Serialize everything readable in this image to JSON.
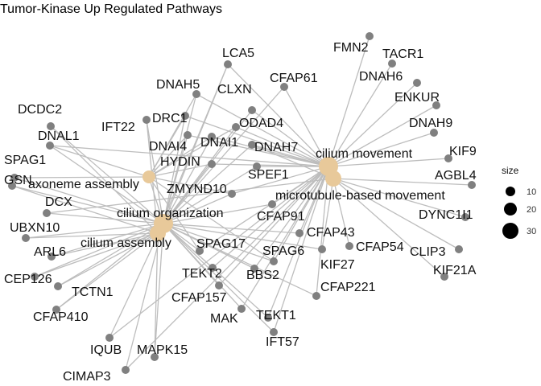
{
  "title": "Tumor-Kinase Up Regulated Pathways",
  "colors": {
    "edge": "#bdbdbd",
    "gene_node": "#808080",
    "term_node": "#e8c99a",
    "legend_dot": "#000000"
  },
  "legend": {
    "title": "size",
    "labels": [
      "10",
      "20",
      "30"
    ]
  },
  "terms": [
    {
      "id": "cm",
      "label": "cilium movement"
    },
    {
      "id": "mbm",
      "label": "microtubule-based movement"
    },
    {
      "id": "aa",
      "label": "axoneme assembly"
    },
    {
      "id": "co",
      "label": "cilium organization"
    },
    {
      "id": "ca",
      "label": "cilium assembly"
    }
  ],
  "genes": [
    {
      "id": "FMN2",
      "label": "FMN2"
    },
    {
      "id": "TACR1",
      "label": "TACR1"
    },
    {
      "id": "LCA5",
      "label": "LCA5"
    },
    {
      "id": "DNAH6",
      "label": "DNAH6"
    },
    {
      "id": "CFAP61",
      "label": "CFAP61"
    },
    {
      "id": "DNAH5",
      "label": "DNAH5"
    },
    {
      "id": "CLXN",
      "label": "CLXN"
    },
    {
      "id": "ENKUR",
      "label": "ENKUR"
    },
    {
      "id": "DCDC2",
      "label": "DCDC2"
    },
    {
      "id": "DRC1",
      "label": "DRC1"
    },
    {
      "id": "ODAD4",
      "label": "ODAD4"
    },
    {
      "id": "IFT22",
      "label": "IFT22"
    },
    {
      "id": "DNAH9",
      "label": "DNAH9"
    },
    {
      "id": "DNAL1",
      "label": "DNAL1"
    },
    {
      "id": "DNAI4",
      "label": "DNAI4"
    },
    {
      "id": "DNAI1",
      "label": "DNAI1"
    },
    {
      "id": "DNAH7",
      "label": "DNAH7"
    },
    {
      "id": "KIF9",
      "label": "KIF9"
    },
    {
      "id": "SPAG1",
      "label": "SPAG1"
    },
    {
      "id": "HYDIN",
      "label": "HYDIN"
    },
    {
      "id": "AGBL4",
      "label": "AGBL4"
    },
    {
      "id": "GSN",
      "label": "GSN"
    },
    {
      "id": "SPEF1",
      "label": "SPEF1"
    },
    {
      "id": "ZMYND10",
      "label": "ZMYND10"
    },
    {
      "id": "DCX",
      "label": "DCX"
    },
    {
      "id": "DYNC1I1",
      "label": "DYNC1I1"
    },
    {
      "id": "CFAP91",
      "label": "CFAP91"
    },
    {
      "id": "UBXN10",
      "label": "UBXN10"
    },
    {
      "id": "CFAP43",
      "label": "CFAP43"
    },
    {
      "id": "CFAP54",
      "label": "CFAP54"
    },
    {
      "id": "ARL6",
      "label": "ARL6"
    },
    {
      "id": "SPAG17",
      "label": "SPAG17"
    },
    {
      "id": "SPAG6",
      "label": "SPAG6"
    },
    {
      "id": "CLIP3",
      "label": "CLIP3"
    },
    {
      "id": "KIF27",
      "label": "KIF27"
    },
    {
      "id": "CEP126",
      "label": "CEP126"
    },
    {
      "id": "TEKT2",
      "label": "TEKT2"
    },
    {
      "id": "BBS2",
      "label": "BBS2"
    },
    {
      "id": "KIF21A",
      "label": "KIF21A"
    },
    {
      "id": "TCTN1",
      "label": "TCTN1"
    },
    {
      "id": "CFAP221",
      "label": "CFAP221"
    },
    {
      "id": "CFAP157",
      "label": "CFAP157"
    },
    {
      "id": "CFAP410",
      "label": "CFAP410"
    },
    {
      "id": "MAK",
      "label": "MAK"
    },
    {
      "id": "TEKT1",
      "label": "TEKT1"
    },
    {
      "id": "IFT57",
      "label": "IFT57"
    },
    {
      "id": "IQUB",
      "label": "IQUB"
    },
    {
      "id": "MAPK15",
      "label": "MAPK15"
    },
    {
      "id": "CIMAP3",
      "label": "CIMAP3"
    }
  ],
  "edges": [
    [
      "FMN2",
      "cm"
    ],
    [
      "TACR1",
      "cm"
    ],
    [
      "DNAH6",
      "cm"
    ],
    [
      "ENKUR",
      "cm"
    ],
    [
      "DNAH9",
      "cm"
    ],
    [
      "KIF9",
      "cm"
    ],
    [
      "AGBL4",
      "mbm"
    ],
    [
      "DYNC1I1",
      "mbm"
    ],
    [
      "CLIP3",
      "mbm"
    ],
    [
      "KIF21A",
      "mbm"
    ],
    [
      "CFAP54",
      "mbm"
    ],
    [
      "LCA5",
      "co"
    ],
    [
      "LCA5",
      "ca"
    ],
    [
      "LCA5",
      "cm"
    ],
    [
      "CFAP61",
      "cm"
    ],
    [
      "CFAP61",
      "co"
    ],
    [
      "DNAH5",
      "cm"
    ],
    [
      "DNAH5",
      "co"
    ],
    [
      "DNAH5",
      "aa"
    ],
    [
      "CLXN",
      "cm"
    ],
    [
      "CLXN",
      "co"
    ],
    [
      "DCDC2",
      "co"
    ],
    [
      "DCDC2",
      "ca"
    ],
    [
      "DRC1",
      "cm"
    ],
    [
      "DRC1",
      "co"
    ],
    [
      "DRC1",
      "aa"
    ],
    [
      "ODAD4",
      "cm"
    ],
    [
      "ODAD4",
      "co"
    ],
    [
      "ODAD4",
      "aa"
    ],
    [
      "IFT22",
      "co"
    ],
    [
      "IFT22",
      "ca"
    ],
    [
      "DNAL1",
      "cm"
    ],
    [
      "DNAL1",
      "co"
    ],
    [
      "DNAL1",
      "aa"
    ],
    [
      "DNAI4",
      "cm"
    ],
    [
      "DNAI4",
      "co"
    ],
    [
      "DNAI4",
      "aa"
    ],
    [
      "DNAI1",
      "cm"
    ],
    [
      "DNAI1",
      "co"
    ],
    [
      "DNAI1",
      "aa"
    ],
    [
      "DNAH7",
      "cm"
    ],
    [
      "DNAH7",
      "mbm"
    ],
    [
      "DNAH7",
      "co"
    ],
    [
      "SPAG1",
      "co"
    ],
    [
      "SPAG1",
      "aa"
    ],
    [
      "HYDIN",
      "cm"
    ],
    [
      "HYDIN",
      "co"
    ],
    [
      "HYDIN",
      "aa"
    ],
    [
      "GSN",
      "co"
    ],
    [
      "GSN",
      "ca"
    ],
    [
      "SPEF1",
      "cm"
    ],
    [
      "SPEF1",
      "co"
    ],
    [
      "ZMYND10",
      "cm"
    ],
    [
      "ZMYND10",
      "co"
    ],
    [
      "ZMYND10",
      "aa"
    ],
    [
      "DCX",
      "mbm"
    ],
    [
      "DCX",
      "co"
    ],
    [
      "CFAP91",
      "cm"
    ],
    [
      "CFAP91",
      "co"
    ],
    [
      "UBXN10",
      "co"
    ],
    [
      "UBXN10",
      "ca"
    ],
    [
      "CFAP43",
      "cm"
    ],
    [
      "CFAP43",
      "co"
    ],
    [
      "ARL6",
      "co"
    ],
    [
      "ARL6",
      "ca"
    ],
    [
      "SPAG17",
      "cm"
    ],
    [
      "SPAG17",
      "co"
    ],
    [
      "SPAG17",
      "aa"
    ],
    [
      "SPAG6",
      "cm"
    ],
    [
      "SPAG6",
      "co"
    ],
    [
      "SPAG6",
      "aa"
    ],
    [
      "KIF27",
      "mbm"
    ],
    [
      "KIF27",
      "co"
    ],
    [
      "CEP126",
      "co"
    ],
    [
      "CEP126",
      "ca"
    ],
    [
      "TEKT2",
      "cm"
    ],
    [
      "TEKT2",
      "co"
    ],
    [
      "BBS2",
      "cm"
    ],
    [
      "BBS2",
      "co"
    ],
    [
      "TCTN1",
      "co"
    ],
    [
      "TCTN1",
      "ca"
    ],
    [
      "CFAP221",
      "cm"
    ],
    [
      "CFAP221",
      "co"
    ],
    [
      "CFAP157",
      "cm"
    ],
    [
      "CFAP157",
      "co"
    ],
    [
      "CFAP410",
      "co"
    ],
    [
      "CFAP410",
      "ca"
    ],
    [
      "MAK",
      "cm"
    ],
    [
      "MAK",
      "co"
    ],
    [
      "TEKT1",
      "cm"
    ],
    [
      "TEKT1",
      "co"
    ],
    [
      "IFT57",
      "cm"
    ],
    [
      "IFT57",
      "co"
    ],
    [
      "IQUB",
      "cm"
    ],
    [
      "IQUB",
      "co"
    ],
    [
      "MAPK15",
      "co"
    ],
    [
      "MAPK15",
      "ca"
    ],
    [
      "CIMAP3",
      "cm"
    ],
    [
      "CIMAP3",
      "co"
    ],
    [
      "aa",
      "co"
    ],
    [
      "ca",
      "co"
    ]
  ]
}
